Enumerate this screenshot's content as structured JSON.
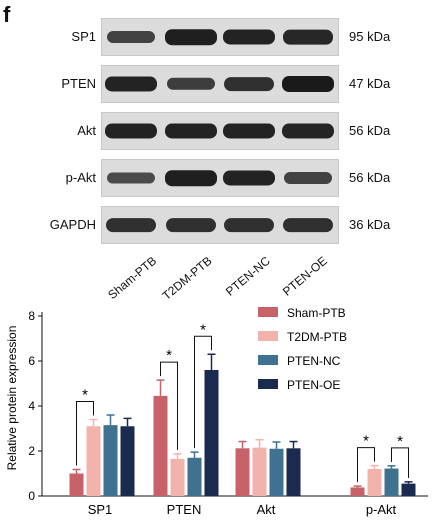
{
  "panel_letter": "f",
  "western_blot": {
    "rows": [
      {
        "label": "SP1",
        "kda": "95 kDa",
        "intensity": [
          0.55,
          0.95,
          0.9,
          0.85
        ]
      },
      {
        "label": "PTEN",
        "kda": "47 kDa",
        "intensity": [
          0.9,
          0.6,
          0.75,
          1.0
        ]
      },
      {
        "label": "Akt",
        "kda": "56 kDa",
        "intensity": [
          0.9,
          0.9,
          0.9,
          0.88
        ]
      },
      {
        "label": "p-Akt",
        "kda": "56 kDa",
        "intensity": [
          0.45,
          0.95,
          0.9,
          0.55
        ]
      },
      {
        "label": "GAPDH",
        "kda": "36 kDa",
        "intensity": [
          0.75,
          0.75,
          0.75,
          0.75
        ]
      }
    ],
    "lanes": [
      "Sham-PTB",
      "T2DM-PTB",
      "PTEN-NC",
      "PTEN-OE"
    ]
  },
  "chart_data": {
    "type": "bar",
    "ylabel": "Relative protein expression",
    "ylim": [
      0,
      8
    ],
    "yticks": [
      "0",
      "2",
      "4",
      "6",
      "8"
    ],
    "categories": [
      "SP1",
      "PTEN",
      "Akt",
      "p-Akt"
    ],
    "series": [
      {
        "name": "Sham-PTB",
        "color": "#c8626a",
        "values": [
          1.0,
          4.45,
          2.12,
          0.38
        ],
        "errors": [
          0.18,
          0.7,
          0.3,
          0.06
        ]
      },
      {
        "name": "T2DM-PTB",
        "color": "#f3b3ad",
        "values": [
          3.1,
          1.65,
          2.15,
          1.2
        ],
        "errors": [
          0.3,
          0.22,
          0.35,
          0.15
        ]
      },
      {
        "name": "PTEN-NC",
        "color": "#3f7191",
        "values": [
          3.15,
          1.7,
          2.1,
          1.22
        ],
        "errors": [
          0.45,
          0.25,
          0.3,
          0.12
        ]
      },
      {
        "name": "PTEN-OE",
        "color": "#1b2a4f",
        "values": [
          3.1,
          5.6,
          2.12,
          0.55
        ],
        "errors": [
          0.35,
          0.7,
          0.3,
          0.08
        ]
      }
    ],
    "legend_position": "top-right",
    "significance": [
      {
        "category": "SP1",
        "from": 0,
        "to": 1,
        "label": "*"
      },
      {
        "category": "PTEN",
        "from": 0,
        "to": 1,
        "label": "*"
      },
      {
        "category": "PTEN",
        "from": 2,
        "to": 3,
        "label": "*"
      },
      {
        "category": "p-Akt",
        "from": 0,
        "to": 1,
        "label": "*"
      },
      {
        "category": "p-Akt",
        "from": 2,
        "to": 3,
        "label": "*"
      }
    ]
  }
}
